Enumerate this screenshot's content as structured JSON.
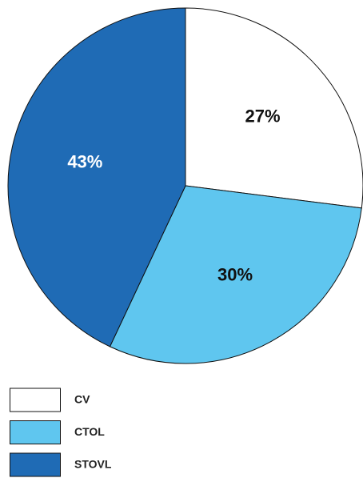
{
  "chart_data": {
    "type": "pie",
    "categories": [
      "CV",
      "CTOL",
      "STOVL"
    ],
    "values": [
      27,
      30,
      43
    ],
    "value_labels": [
      "27%",
      "30%",
      "43%"
    ],
    "colors": [
      "#ffffff",
      "#5fc6ef",
      "#1f6bb5"
    ],
    "start_angle": 90,
    "direction": "clockwise",
    "legend": "bottom-left"
  }
}
